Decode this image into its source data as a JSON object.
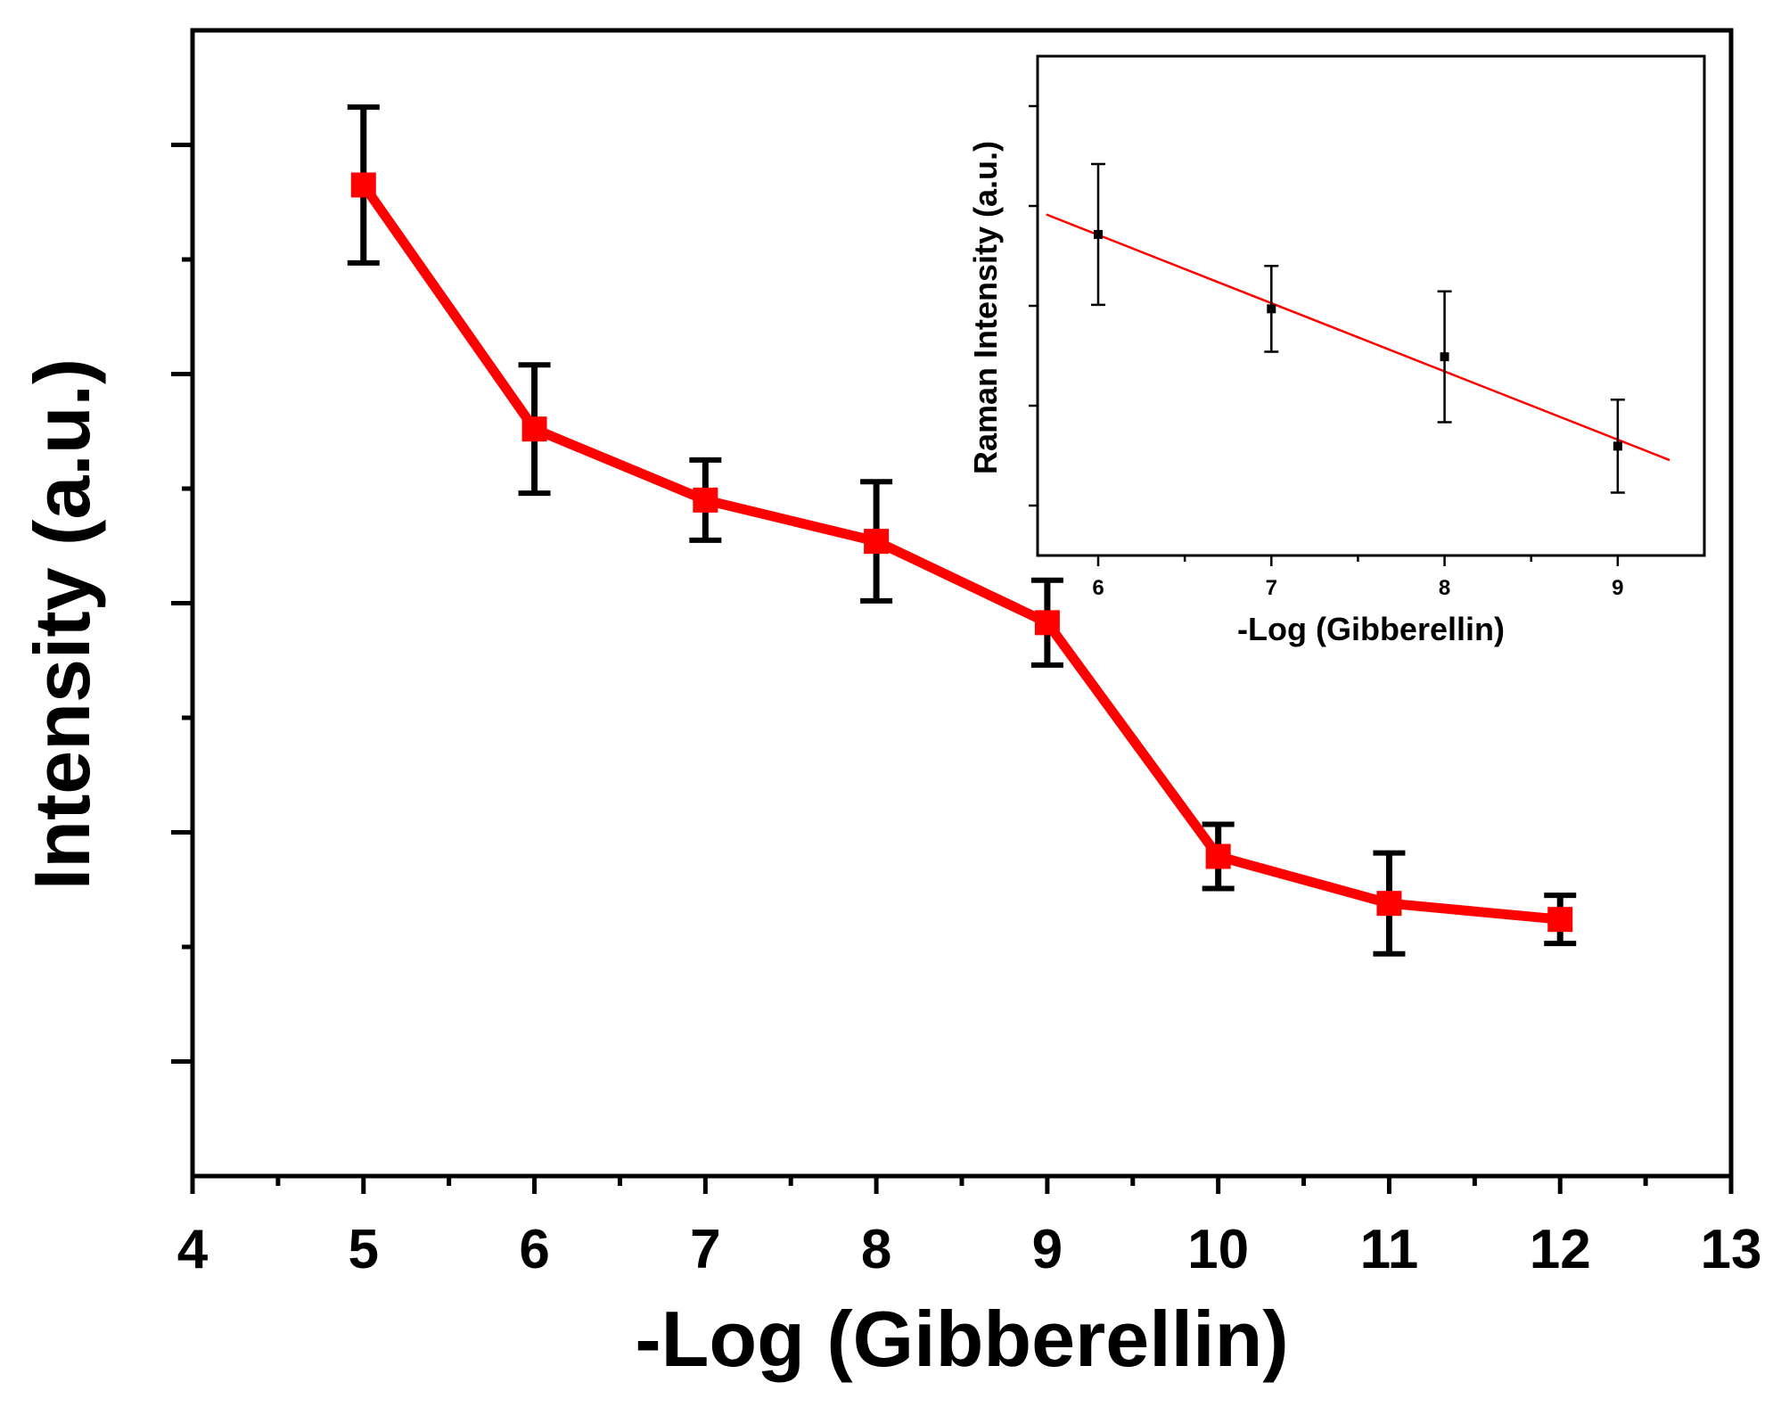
{
  "chart_data": [
    {
      "type": "line",
      "name": "main",
      "title": "",
      "xlabel": "-Log (Gibberellin)",
      "ylabel": "Intensity (a.u.)",
      "xlim": [
        4,
        13
      ],
      "ylim": [
        0,
        10
      ],
      "x_ticks": [
        4,
        5,
        6,
        7,
        8,
        9,
        10,
        11,
        12,
        13
      ],
      "x_tick_labels": [
        "4",
        "5",
        "6",
        "7",
        "8",
        "9",
        "10",
        "11",
        "12",
        "13"
      ],
      "y_major_ticks": [
        1,
        3,
        5,
        7,
        9
      ],
      "y_minor_ticks": [
        2,
        4,
        6,
        8
      ],
      "series": [
        {
          "name": "Intensity",
          "color": "#ff0000",
          "marker": "square",
          "x": [
            5,
            6,
            7,
            8,
            9,
            10,
            11,
            12
          ],
          "values": [
            8.65,
            6.52,
            5.9,
            5.54,
            4.83,
            2.79,
            2.38,
            2.24
          ],
          "error": [
            0.68,
            0.56,
            0.35,
            0.52,
            0.37,
            0.28,
            0.44,
            0.21
          ]
        }
      ]
    },
    {
      "type": "scatter",
      "name": "inset",
      "title": "",
      "xlabel": "-Log (Gibberellin)",
      "ylabel": "Raman Intensity (a.u.)",
      "xlim": [
        5.65,
        9.5
      ],
      "ylim": [
        0,
        10
      ],
      "x_ticks": [
        6,
        7,
        8,
        9
      ],
      "x_tick_labels": [
        "6",
        "7",
        "8",
        "9"
      ],
      "x_minor_ticks": [
        6.5,
        7.5,
        8.5
      ],
      "y_ticks": [
        1,
        3,
        5,
        7,
        9
      ],
      "series": [
        {
          "name": "data",
          "color": "#000000",
          "marker": "square",
          "x": [
            6,
            7,
            8,
            9
          ],
          "values": [
            6.43,
            4.94,
            3.98,
            2.19
          ],
          "error": [
            1.41,
            0.86,
            1.31,
            0.93
          ]
        }
      ],
      "fit": {
        "color": "#ff0000",
        "x": [
          5.7,
          9.3
        ],
        "values": [
          6.83,
          1.91
        ]
      }
    }
  ]
}
